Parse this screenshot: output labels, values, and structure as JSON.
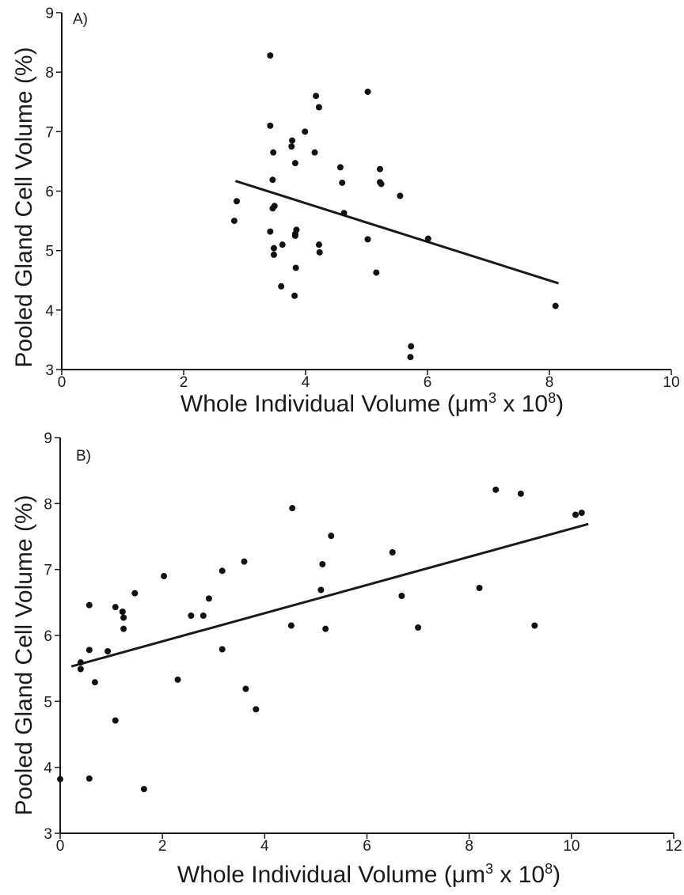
{
  "chart_data": [
    {
      "type": "scatter",
      "panel_label": "A)",
      "xlabel_main": "Whole Individual Volume (",
      "xlabel_mu": "μ",
      "xlabel_m": "m",
      "xlabel_sup1": "3",
      "xlabel_mid": " x 10",
      "xlabel_sup2": "8",
      "xlabel_end": ")",
      "ylabel": "Pooled Gland Cell Volume (%)",
      "xlim": [
        0,
        10
      ],
      "ylim": [
        3,
        9
      ],
      "xticks": [
        0,
        2,
        4,
        6,
        8,
        10
      ],
      "yticks": [
        3,
        4,
        5,
        6,
        7,
        8,
        9
      ],
      "grid": false,
      "points": [
        [
          3.42,
          8.28
        ],
        [
          4.17,
          7.6
        ],
        [
          5.02,
          7.67
        ],
        [
          4.22,
          7.41
        ],
        [
          3.42,
          7.1
        ],
        [
          3.99,
          7.0
        ],
        [
          3.78,
          6.85
        ],
        [
          3.77,
          6.75
        ],
        [
          3.47,
          6.65
        ],
        [
          4.15,
          6.65
        ],
        [
          3.83,
          6.47
        ],
        [
          4.57,
          6.4
        ],
        [
          5.22,
          6.37
        ],
        [
          3.46,
          6.19
        ],
        [
          4.6,
          6.14
        ],
        [
          5.22,
          6.15
        ],
        [
          5.24,
          6.12
        ],
        [
          5.55,
          5.92
        ],
        [
          2.87,
          5.83
        ],
        [
          3.49,
          5.75
        ],
        [
          3.46,
          5.71
        ],
        [
          4.63,
          5.63
        ],
        [
          2.83,
          5.5
        ],
        [
          3.85,
          5.35
        ],
        [
          3.42,
          5.32
        ],
        [
          3.83,
          5.28
        ],
        [
          3.83,
          5.25
        ],
        [
          5.02,
          5.19
        ],
        [
          6.01,
          5.2
        ],
        [
          3.62,
          5.1
        ],
        [
          4.22,
          5.1
        ],
        [
          3.48,
          5.04
        ],
        [
          3.48,
          4.93
        ],
        [
          4.23,
          4.97
        ],
        [
          3.84,
          4.71
        ],
        [
          5.16,
          4.63
        ],
        [
          3.6,
          4.4
        ],
        [
          3.82,
          4.24
        ],
        [
          8.1,
          4.07
        ],
        [
          5.73,
          3.39
        ],
        [
          5.72,
          3.21
        ]
      ],
      "fit_line": {
        "x": [
          2.85,
          8.15
        ],
        "y": [
          6.17,
          4.45
        ]
      }
    },
    {
      "type": "scatter",
      "panel_label": "B)",
      "xlabel_main": "Whole Individual Volume (",
      "xlabel_mu": "μ",
      "xlabel_m": "m",
      "xlabel_sup1": "3",
      "xlabel_mid": " x 10",
      "xlabel_sup2": "8",
      "xlabel_end": ")",
      "ylabel": "Pooled Gland Cell Volume (%)",
      "xlim": [
        0,
        12
      ],
      "ylim": [
        3,
        9
      ],
      "xticks": [
        0,
        2,
        4,
        6,
        8,
        10,
        12
      ],
      "yticks": [
        3,
        4,
        5,
        6,
        7,
        8,
        9
      ],
      "grid": false,
      "points": [
        [
          8.52,
          8.21
        ],
        [
          9.01,
          8.15
        ],
        [
          4.54,
          7.93
        ],
        [
          10.08,
          7.83
        ],
        [
          10.2,
          7.86
        ],
        [
          5.3,
          7.51
        ],
        [
          6.5,
          7.26
        ],
        [
          3.6,
          7.12
        ],
        [
          5.13,
          7.08
        ],
        [
          3.17,
          6.98
        ],
        [
          2.03,
          6.9
        ],
        [
          8.2,
          6.72
        ],
        [
          5.1,
          6.69
        ],
        [
          1.46,
          6.64
        ],
        [
          6.68,
          6.6
        ],
        [
          2.91,
          6.56
        ],
        [
          0.57,
          6.46
        ],
        [
          1.08,
          6.43
        ],
        [
          1.22,
          6.36
        ],
        [
          1.24,
          6.27
        ],
        [
          2.56,
          6.3
        ],
        [
          2.8,
          6.3
        ],
        [
          4.52,
          6.15
        ],
        [
          9.28,
          6.15
        ],
        [
          7.0,
          6.12
        ],
        [
          5.19,
          6.1
        ],
        [
          1.24,
          6.1
        ],
        [
          3.17,
          5.79
        ],
        [
          0.57,
          5.78
        ],
        [
          0.93,
          5.76
        ],
        [
          0.4,
          5.59
        ],
        [
          0.4,
          5.49
        ],
        [
          2.3,
          5.33
        ],
        [
          0.68,
          5.29
        ],
        [
          3.63,
          5.19
        ],
        [
          3.83,
          4.88
        ],
        [
          1.08,
          4.71
        ],
        [
          0.0,
          3.82
        ],
        [
          0.57,
          3.83
        ],
        [
          1.64,
          3.67
        ]
      ],
      "fit_line": {
        "x": [
          0.22,
          10.33
        ],
        "y": [
          5.53,
          7.69
        ]
      }
    }
  ]
}
